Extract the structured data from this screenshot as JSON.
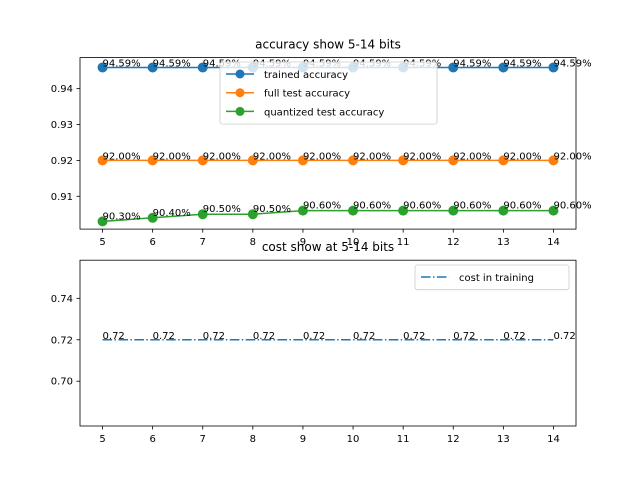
{
  "chart_data": [
    {
      "type": "line",
      "title": "accuracy show 5-14 bits",
      "xlabel": "",
      "ylabel": "",
      "x": [
        5,
        6,
        7,
        8,
        9,
        10,
        11,
        12,
        13,
        14
      ],
      "xlim": [
        4.55,
        14.45
      ],
      "ylim": [
        0.90085,
        0.94865
      ],
      "yticks": [
        0.91,
        0.92,
        0.93,
        0.94
      ],
      "ytick_labels": [
        "0.91",
        "0.92",
        "0.93",
        "0.94"
      ],
      "legend_position": "upper center",
      "grid": false,
      "series": [
        {
          "name": "trained accuracy",
          "color": "#1f77b4",
          "marker": "circle",
          "linestyle": "solid",
          "values": [
            0.9459,
            0.9459,
            0.9459,
            0.9459,
            0.9459,
            0.9459,
            0.9459,
            0.9459,
            0.9459,
            0.9459
          ],
          "labels": [
            "94.59%",
            "94.59%",
            "94.59%",
            "94.59%",
            "94.59%",
            "94.59%",
            "94.59%",
            "94.59%",
            "94.59%",
            "94.59%"
          ]
        },
        {
          "name": "full test accuracy",
          "color": "#ff7f0e",
          "marker": "circle",
          "linestyle": "solid",
          "values": [
            0.92,
            0.92,
            0.92,
            0.92,
            0.92,
            0.92,
            0.92,
            0.92,
            0.92,
            0.92
          ],
          "labels": [
            "92.00%",
            "92.00%",
            "92.00%",
            "92.00%",
            "92.00%",
            "92.00%",
            "92.00%",
            "92.00%",
            "92.00%",
            "92.00%"
          ]
        },
        {
          "name": "quantized test accuracy",
          "color": "#2ca02c",
          "marker": "circle",
          "linestyle": "solid",
          "values": [
            0.903,
            0.904,
            0.905,
            0.905,
            0.906,
            0.906,
            0.906,
            0.906,
            0.906,
            0.906
          ],
          "labels": [
            "90.30%",
            "90.40%",
            "90.50%",
            "90.50%",
            "90.60%",
            "90.60%",
            "90.60%",
            "90.60%",
            "90.60%",
            "90.60%"
          ]
        }
      ]
    },
    {
      "type": "line",
      "title": "cost show at 5-14 bits",
      "xlabel": "",
      "ylabel": "",
      "x": [
        5,
        6,
        7,
        8,
        9,
        10,
        11,
        12,
        13,
        14
      ],
      "xlim": [
        4.55,
        14.45
      ],
      "ylim": [
        0.6784,
        0.7584
      ],
      "yticks": [
        0.7,
        0.72,
        0.74
      ],
      "ytick_labels": [
        "0.70",
        "0.72",
        "0.74"
      ],
      "legend_position": "upper right",
      "grid": false,
      "series": [
        {
          "name": "cost in training",
          "color": "#1f77b4",
          "marker": "none",
          "linestyle": "dashdot",
          "values": [
            0.72,
            0.72,
            0.72,
            0.72,
            0.72,
            0.72,
            0.72,
            0.72,
            0.72,
            0.72
          ],
          "labels": [
            "0.72",
            "0.72",
            "0.72",
            "0.72",
            "0.72",
            "0.72",
            "0.72",
            "0.72",
            "0.72",
            "0.72"
          ]
        }
      ]
    }
  ]
}
